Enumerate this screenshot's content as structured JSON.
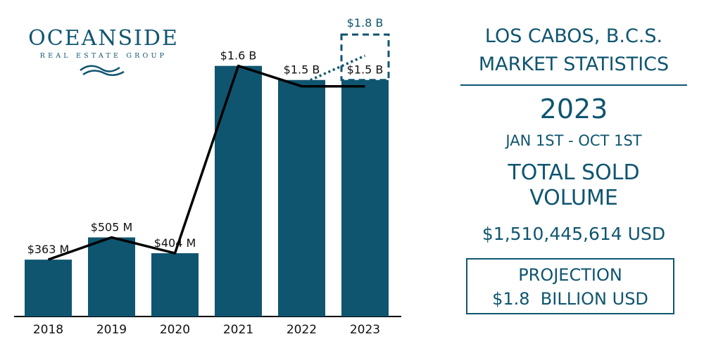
{
  "logo": {
    "name": "OCEANSIDE",
    "tagline": "REAL ESTATE GROUP"
  },
  "panel": {
    "heading_line1": "LOS CABOS, B.C.S.",
    "heading_line2": "MARKET STATISTICS",
    "year": "2023",
    "date_range": "JAN 1ST - OCT 1ST",
    "metric_line1": "TOTAL SOLD",
    "metric_line2": "VOLUME",
    "amount": "$1,510,445,614 USD",
    "projection_label": "PROJECTION",
    "projection_value": "$1.8  BILLION USD"
  },
  "colors": {
    "bar": "#0f5570",
    "line": "#000000",
    "text": "#0f5570"
  },
  "chart_data": {
    "type": "bar",
    "categories": [
      "2018",
      "2019",
      "2020",
      "2021",
      "2022",
      "2023"
    ],
    "values": [
      363,
      505,
      404,
      1600,
      1510,
      1510
    ],
    "value_labels": [
      "$363 M",
      "$505 M",
      "$404 M",
      "$1.6 B",
      "$1.5 B",
      "$1.5 B"
    ],
    "trend_line": [
      363,
      505,
      404,
      1600,
      1510,
      1510
    ],
    "projection": {
      "category": "2023",
      "value": 1800,
      "label": "$1.8 B",
      "style": "dashed-box"
    },
    "units": "millions USD",
    "ylim": [
      0,
      1850
    ],
    "legend": "none",
    "grid": false
  }
}
